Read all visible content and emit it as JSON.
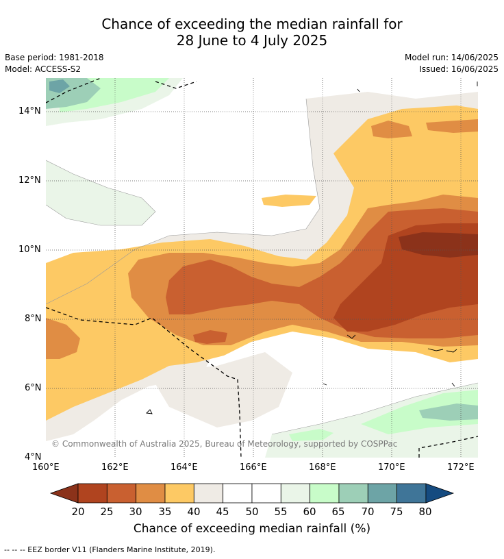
{
  "title_line1": "Chance of exceeding the median rainfall for",
  "title_line2": "28 June to 4 July 2025",
  "base_period": "Base period: 1981-2018",
  "model": "Model: ACCESS-S2",
  "model_run": "Model run: 14/06/2025",
  "issued": "Issued: 16/06/2025",
  "copyright": "© Commonwealth of Australia 2025, Bureau of Meteorology, supported by COSPPac",
  "x_ticks": [
    "160°E",
    "162°E",
    "164°E",
    "166°E",
    "168°E",
    "170°E",
    "172°E"
  ],
  "y_ticks": [
    "14°N",
    "12°N",
    "10°N",
    "8°N",
    "6°N",
    "4°N"
  ],
  "colorbar": {
    "labels": [
      "20",
      "25",
      "30",
      "35",
      "40",
      "45",
      "50",
      "55",
      "60",
      "65",
      "70",
      "75",
      "80"
    ],
    "colors": [
      "#8b321a",
      "#b0441f",
      "#c96030",
      "#e08d44",
      "#fdc964",
      "#efebe5",
      "#ffffff",
      "#ffffff",
      "#eaf5e8",
      "#c8fcc9",
      "#9dcfb7",
      "#6da4a6",
      "#3f7598",
      "#154b80"
    ],
    "title": "Chance of exceeding median rainfall (%)"
  },
  "footer": "--  --  -- EEZ border V11 (Flanders Marine Institute, 2019)."
}
